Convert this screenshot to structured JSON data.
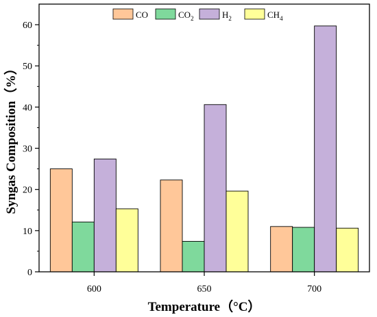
{
  "chart_data": {
    "type": "bar",
    "categories": [
      "600",
      "650",
      "700"
    ],
    "series": [
      {
        "name": "CO",
        "name_main": "CO",
        "name_sub": "",
        "color": "#FFC799",
        "values": [
          25.0,
          22.3,
          11.0
        ]
      },
      {
        "name": "CO2",
        "name_main": "CO",
        "name_sub": "2",
        "color": "#7FD99C",
        "values": [
          12.1,
          7.4,
          10.8
        ]
      },
      {
        "name": "H2",
        "name_main": "H",
        "name_sub": "2",
        "color": "#C5B0DA",
        "values": [
          27.4,
          40.6,
          59.7
        ]
      },
      {
        "name": "CH4",
        "name_main": "CH",
        "name_sub": "4",
        "color": "#FFFF99",
        "values": [
          15.3,
          19.6,
          10.6
        ]
      }
    ],
    "xlabel": "Temperature（°C）",
    "ylabel": "Syngas Composition（%）",
    "ylim": [
      0,
      65
    ],
    "yticks": [
      0,
      10,
      20,
      30,
      40,
      50,
      60
    ],
    "legend_position": "top-center",
    "grid": false
  }
}
